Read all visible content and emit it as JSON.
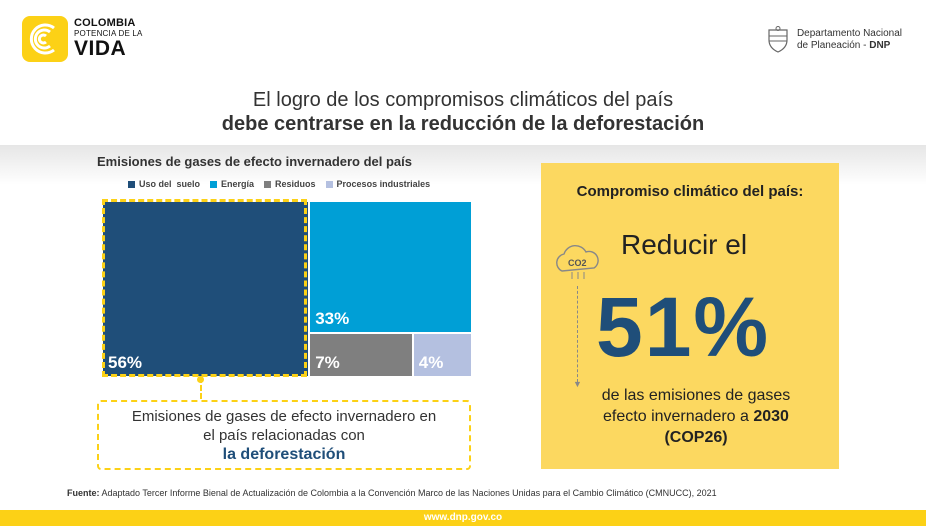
{
  "brand": {
    "line1": "COLOMBIA",
    "line2": "POTENCIA DE LA",
    "line3": "VIDA",
    "accent_color": "#fcd116"
  },
  "agency": {
    "line1": "Departamento Nacional",
    "line2_prefix": "de Planeación - ",
    "line2_bold": "DNP"
  },
  "headline": {
    "line1": "El logro de los compromisos climáticos del país",
    "line2": "debe centrarse en la reducción de la deforestación"
  },
  "chart_data": {
    "type": "treemap",
    "title": "Emisiones de gases de efecto invernadero del país",
    "series": [
      {
        "name": "Uso del  suelo",
        "value": 56,
        "label": "56%",
        "color": "#1f4e79"
      },
      {
        "name": "Energía",
        "value": 33,
        "label": "33%",
        "color": "#009fd6"
      },
      {
        "name": "Residuos",
        "value": 7,
        "label": "7%",
        "color": "#7f7f7f"
      },
      {
        "name": "Procesos industriales",
        "value": 4,
        "label": "4%",
        "color": "#b4c0e0"
      }
    ],
    "legend": "top"
  },
  "callout": {
    "text_line1": "Emisiones de gases de efecto invernadero en",
    "text_line2": "el país relacionadas con",
    "text_bold": "la deforestación"
  },
  "commitment": {
    "title": "Compromiso climático del país:",
    "verb": "Reducir el",
    "percent": "51%",
    "desc_line1": "de las emisiones de gases",
    "desc_line2_prefix": "efecto invernadero a ",
    "desc_line2_bold": "2030",
    "desc_line3": "(COP26)",
    "cloud_label": "CO2"
  },
  "source": {
    "label": "Fuente:",
    "text": "Adaptado Tercer Informe Bienal de Actualización de Colombia a la Convención Marco de las Naciones Unidas para el Cambio Climático (CMNUCC), 2021"
  },
  "footer": {
    "url": "www.dnp.gov.co"
  }
}
